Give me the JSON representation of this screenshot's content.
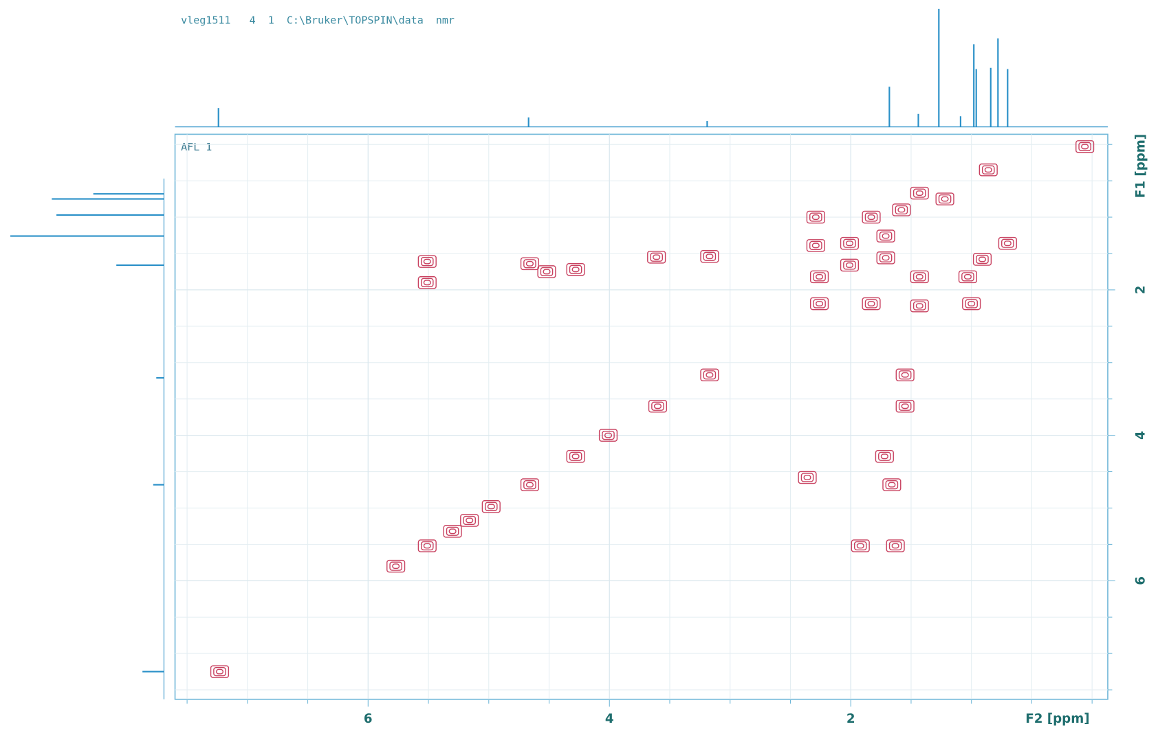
{
  "chart_data": {
    "type": "contour",
    "title": "vleg1511   4  1  C:\\Bruker\\TOPSPIN\\data  nmr",
    "label": "AFL 1",
    "xlabel": "F2 [ppm]",
    "ylabel": "F1 [ppm]",
    "xlim": [
      7.6,
      -0.13
    ],
    "ylim": [
      -0.14,
      7.63
    ],
    "xticks": [
      6,
      4,
      2
    ],
    "yticks": [
      2,
      4,
      6
    ],
    "xminorticks": [
      7.5,
      7,
      6.5,
      5.5,
      5,
      4.5,
      3.5,
      3,
      2.5,
      1.5,
      1,
      0.5,
      0
    ],
    "yminorticks": [
      0,
      0.5,
      1,
      1.5,
      2.5,
      3,
      3.5,
      4.5,
      5,
      5.5,
      6.5,
      7,
      7.5
    ],
    "grid": true,
    "color": "#c8405f",
    "x": [
      7.23,
      5.51,
      5.77,
      5.3,
      5.16,
      4.98,
      4.66,
      4.28,
      4.01,
      3.6,
      3.17,
      5.51,
      5.51,
      4.66,
      4.52,
      4.28,
      3.61,
      3.17,
      1.55,
      1.55,
      1.66,
      1.72,
      1.92,
      1.63,
      2.36,
      0.06,
      2.29,
      2.29,
      2.26,
      2.26,
      1.83,
      1.83,
      1.43,
      1.43,
      1.43,
      1.0,
      0.91,
      1.03,
      0.7,
      1.58,
      2.01,
      1.71,
      0.86,
      1.22,
      1.71,
      2.01
    ],
    "values": [
      7.25,
      5.52,
      5.8,
      5.32,
      5.17,
      4.98,
      4.68,
      4.29,
      4.0,
      3.6,
      3.17,
      1.61,
      1.9,
      1.64,
      1.75,
      1.72,
      1.55,
      1.54,
      3.17,
      3.6,
      4.68,
      4.29,
      5.52,
      5.52,
      4.58,
      0.03,
      1.0,
      1.39,
      1.82,
      2.19,
      1.0,
      2.19,
      0.67,
      1.82,
      2.22,
      2.19,
      1.58,
      1.82,
      1.36,
      0.9,
      1.36,
      1.56,
      0.35,
      0.75,
      1.26,
      1.66
    ],
    "top_projection": {
      "color": "#2a90c8",
      "x": [
        7.24,
        4.67,
        3.19,
        1.68,
        1.44,
        1.27,
        1.09,
        0.98,
        0.96,
        0.84,
        0.78,
        0.7
      ],
      "values": [
        16,
        8,
        5,
        34,
        11,
        100,
        9,
        70,
        49,
        50,
        75,
        49
      ]
    },
    "left_projection": {
      "color": "#2a90c8",
      "y": [
        0.68,
        0.75,
        0.97,
        1.26,
        1.66,
        3.21,
        4.68,
        7.25
      ],
      "values": [
        46,
        73,
        70,
        100,
        31,
        5,
        7,
        14
      ]
    }
  }
}
